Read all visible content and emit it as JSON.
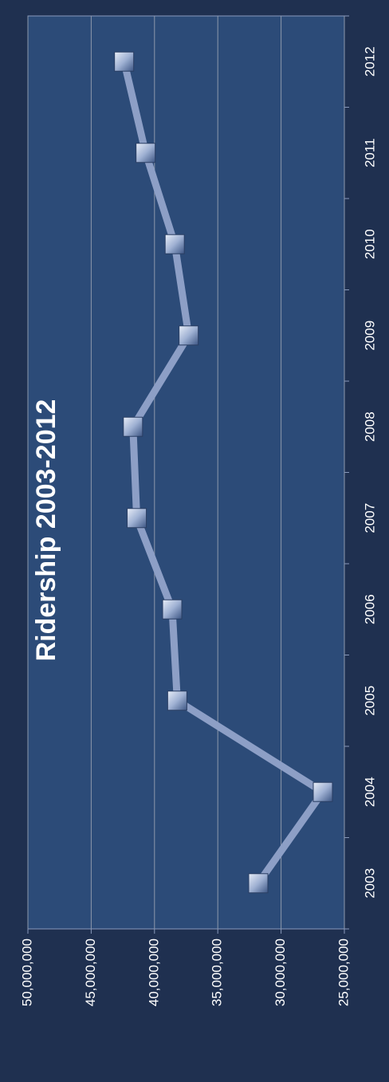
{
  "chart_data": {
    "type": "line",
    "title": "Ridership 2003-2012",
    "categories": [
      "2003",
      "2004",
      "2005",
      "2006",
      "2007",
      "2008",
      "2009",
      "2010",
      "2011",
      "2012"
    ],
    "values": [
      31800000,
      26700000,
      38200000,
      38600000,
      41400000,
      41700000,
      37300000,
      38400000,
      40700000,
      42400000
    ],
    "color": "#8d9fc6",
    "ylim": [
      25000000,
      50000000
    ],
    "yticks": [
      {
        "value": 25000000,
        "label": "25,000,000"
      },
      {
        "value": 30000000,
        "label": "30,000,000"
      },
      {
        "value": 35000000,
        "label": "35,000,000"
      },
      {
        "value": 40000000,
        "label": "40,000,000"
      },
      {
        "value": 45000000,
        "label": "45,000,000"
      },
      {
        "value": 50000000,
        "label": "50,000,000"
      }
    ],
    "grid": true
  }
}
